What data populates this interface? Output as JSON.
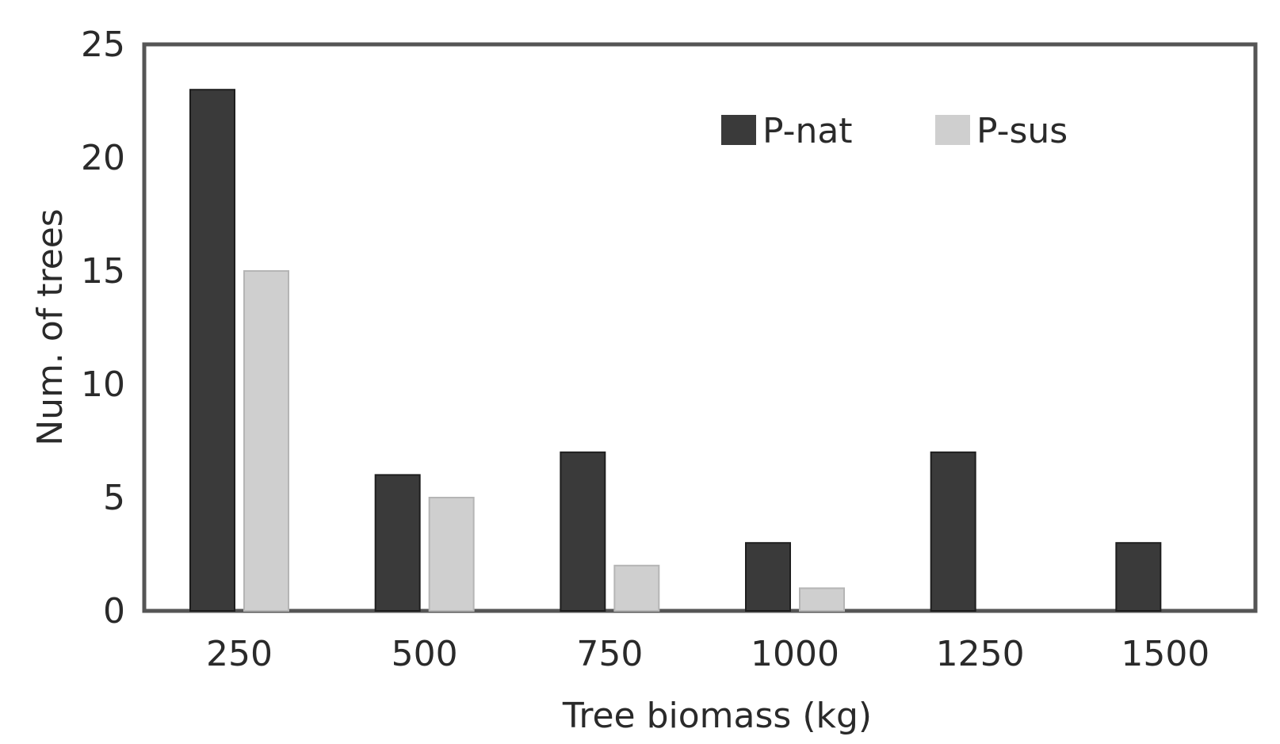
{
  "chart_data": {
    "type": "bar",
    "title": "",
    "xlabel": "Tree biomass (kg)",
    "ylabel": "Num. of trees",
    "categories": [
      "250",
      "500",
      "750",
      "1000",
      "1250",
      "1500"
    ],
    "series": [
      {
        "name": "P-nat",
        "values": [
          23,
          6,
          7,
          3,
          7,
          3
        ],
        "color": "#3a3a3a"
      },
      {
        "name": "P-sus",
        "values": [
          15,
          5,
          2,
          1,
          0,
          0
        ],
        "color": "#cfcfcf"
      }
    ],
    "ylim": [
      0,
      25
    ],
    "yticks": [
      "0",
      "5",
      "10",
      "15",
      "20",
      "25"
    ],
    "grid": false,
    "legend_position": "top-right"
  }
}
